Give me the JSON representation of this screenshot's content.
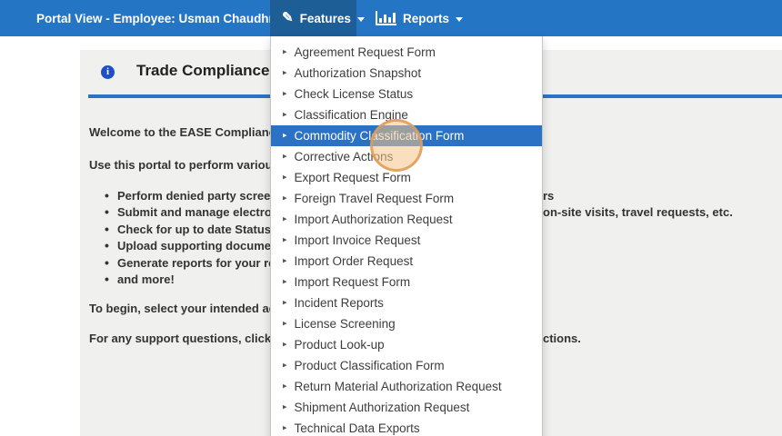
{
  "navbar": {
    "brand": "Portal View - Employee: Usman Chaudhry",
    "features": {
      "label": "Features"
    },
    "reports": {
      "label": "Reports"
    }
  },
  "page_header": {
    "title": "Trade Compliance"
  },
  "content": {
    "lines": {
      "welcome": "Welcome to the EASE Compliance",
      "intro": "Use this portal to perform various a",
      "to_begin": "To begin, select your intended activ",
      "support": "For any support questions, click on"
    },
    "bullets": [
      "Perform denied party screeni",
      "Submit and manage electroni",
      "Check for up to date Status in",
      "Upload supporting document",
      "Generate reports for your rec",
      "and more!"
    ],
    "fragments": [
      "rs",
      "on-site visits, travel requests, etc.",
      "ctions."
    ]
  },
  "dropdown": {
    "active_item": "Commodity Classification Form",
    "items": [
      "Agreement Request Form",
      "Authorization Snapshot",
      "Check License Status",
      "Classification Engine",
      "Commodity Classification Form",
      "Corrective Actions",
      "Export Request Form",
      "Foreign Travel Request Form",
      "Import Authorization Request",
      "Import Invoice Request",
      "Import Order Request",
      "Import Request Form",
      "Incident Reports",
      "License Screening",
      "Product Look-up",
      "Product Classification Form",
      "Return Material Authorization Request",
      "Shipment Authorization Request",
      "Technical Data Exports"
    ]
  },
  "colors": {
    "navbar": "#2575c5",
    "navbar_active": "#1e5e96",
    "dropdown_active": "#2b72c4",
    "accent_line": "#2a74c4",
    "panel_bg": "#f0f0ef",
    "info_icon": "#1f4fc8",
    "click_ring": "#e09a52"
  }
}
